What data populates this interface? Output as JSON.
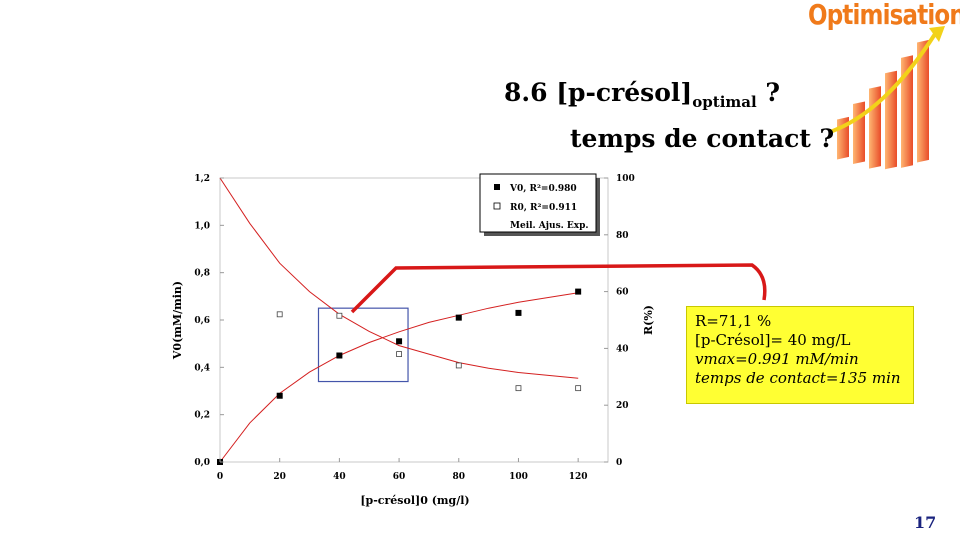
{
  "logo": {
    "text": "Optimisation"
  },
  "slide": {
    "title_main": "8.6 [p-crésol]",
    "title_sub": "optimal",
    "title_q": " ?",
    "title_line2": "temps de contact ?",
    "page_number": "17"
  },
  "infobox": {
    "line1": "R=71,1 %",
    "line2": "[p-Crésol]= 40 mg/L",
    "line3": "vmax=0.991 mM/min",
    "line4": "temps de contact=135 min"
  },
  "chart_data": {
    "type": "scatter",
    "xlabel": "[p-crésol]0 (mg/l)",
    "ylabel_left": "V0(mM/min)",
    "ylabel_right": "R(%)",
    "x_ticks": [
      "0",
      "20",
      "40",
      "60",
      "80",
      "100",
      "120"
    ],
    "y_left_ticks": [
      "0,0",
      "0,2",
      "0,4",
      "0,6",
      "0,8",
      "1,0",
      "1,2"
    ],
    "y_right_ticks": [
      "0",
      "20",
      "40",
      "60",
      "80",
      "100"
    ],
    "xlim": [
      0,
      130
    ],
    "ylim_left": [
      0,
      1.2
    ],
    "ylim_right": [
      0,
      100
    ],
    "legend": [
      {
        "marker": "filled-square",
        "label": "V0, R²=0.980"
      },
      {
        "marker": "open-square",
        "label": "R0, R²=0.911"
      },
      {
        "marker": "line",
        "label": "Meil. Ajus. Exp."
      }
    ],
    "series": [
      {
        "axis": "left",
        "marker": "filled-square",
        "x": [
          0,
          20,
          40,
          60,
          80,
          100,
          120
        ],
        "y": [
          0.0,
          0.28,
          0.45,
          0.51,
          0.61,
          0.63,
          0.72
        ]
      },
      {
        "axis": "right",
        "marker": "open-square",
        "x": [
          20,
          40,
          60,
          80,
          100,
          120
        ],
        "y": [
          52,
          51.5,
          38,
          34,
          26,
          26
        ]
      }
    ],
    "fit_curves": [
      {
        "axis": "left",
        "x": [
          0,
          10,
          20,
          30,
          40,
          50,
          60,
          70,
          80,
          90,
          100,
          110,
          120
        ],
        "y": [
          0.0,
          0.165,
          0.29,
          0.38,
          0.45,
          0.505,
          0.55,
          0.59,
          0.62,
          0.65,
          0.675,
          0.695,
          0.715
        ]
      },
      {
        "axis": "right",
        "x": [
          0,
          10,
          20,
          30,
          40,
          50,
          60,
          70,
          80,
          90,
          100,
          110,
          120
        ],
        "y": [
          100,
          84,
          70,
          60,
          52,
          46,
          41,
          38,
          35,
          33,
          31.5,
          30.5,
          29.5
        ]
      }
    ],
    "highlight_x_range": [
      33,
      63
    ],
    "highlight_y_range": [
      0.34,
      0.65
    ]
  }
}
